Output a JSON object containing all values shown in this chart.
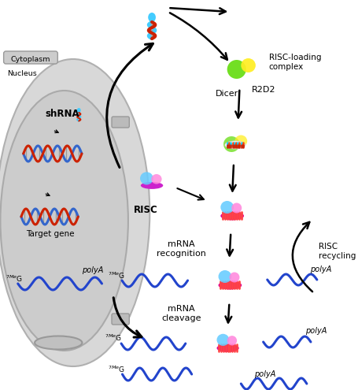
{
  "bg_color": "#ffffff",
  "fig_width": 4.55,
  "fig_height": 4.95,
  "dpi": 100,
  "labels": {
    "cytoplasm": "Cytoplasm",
    "nucleus": "Nucleus",
    "shrna": "shRNA",
    "target_gene": "Target gene",
    "polyA_inner": "polyA",
    "7meG_inner": "7MeG",
    "dicer": "Dicer",
    "r2d2": "R2D2",
    "risc_loading": "RISC-loading\ncomplex",
    "risc": "RISC",
    "mrna_recognition": "mRNA\nrecognition",
    "risc_recycling": "RISC\nrecycling",
    "mrna_cleavage": "mRNA\ncleavage",
    "7meG2": "$^{7Me}$G",
    "polyA2": "polyA",
    "7meG3": "$^{7Me}$G",
    "polyA3": "polyA",
    "7meG4": "$^{7Me}$G",
    "polyA4": "polyA"
  },
  "colors": {
    "cell_outer": "#d8d8d8",
    "cell_inner": "#cccccc",
    "cell_edge": "#aaaaaa",
    "dna_blue": "#3366cc",
    "dna_red": "#cc2200",
    "shrna_blue": "#44ccff",
    "shrna_red": "#cc2200",
    "green_circle": "#66dd11",
    "yellow_circle": "#ffee22",
    "blue_circle": "#66ccff",
    "pink_circle": "#ff88dd",
    "purple_ellipse": "#cc22cc",
    "magenta_bar": "#dd0099",
    "mrna_blue": "#2244cc",
    "arrow_color": "#111111",
    "dsrna_cyan": "#00ccff",
    "dsrna_red": "#cc2200"
  }
}
